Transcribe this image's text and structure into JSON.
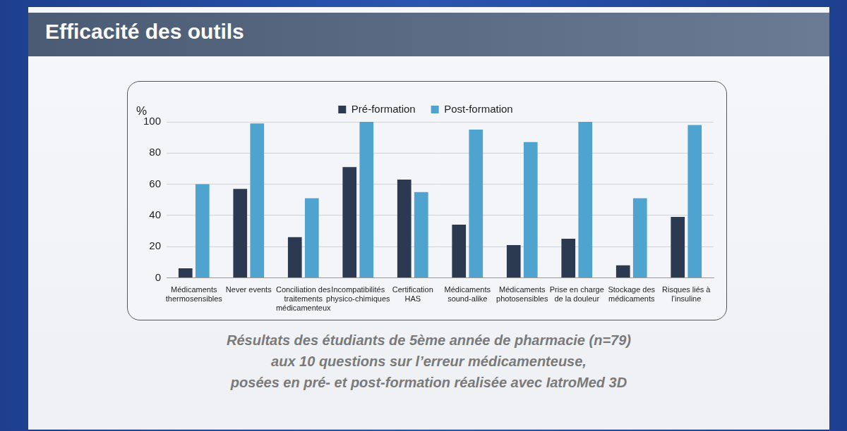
{
  "chart_data": {
    "type": "bar",
    "title": "Efficacité des outils",
    "y_label": "%",
    "categories": [
      "Médicaments thermosensibles",
      "Never events",
      "Conciliation des traitements médicamenteux",
      "Incompatibilités physico-chimiques",
      "Certification HAS",
      "Médicaments sound-alike",
      "Médicaments photosensibles",
      "Prise en charge de la douleur",
      "Stockage des médicaments",
      "Risques liés à l’insuline"
    ],
    "series": [
      {
        "name": "Pré-formation",
        "color": "#2b3a50",
        "values": [
          6,
          57,
          26,
          71,
          63,
          34,
          21,
          25,
          8,
          39
        ]
      },
      {
        "name": "Post-formation",
        "color": "#4fa3cf",
        "values": [
          60,
          99,
          51,
          100,
          55,
          95,
          87,
          100,
          51,
          98
        ]
      }
    ],
    "ylim": [
      0,
      100
    ],
    "yticks": [
      0,
      20,
      40,
      60,
      80,
      100
    ],
    "grid": true,
    "legend": "top",
    "caption": [
      "Résultats des étudiants de 5ème année de pharmacie (n=79)",
      "aux 10 questions sur l’erreur médicamenteuse,",
      "posées en pré- et post-formation réalisée avec IatroMed 3D"
    ]
  }
}
